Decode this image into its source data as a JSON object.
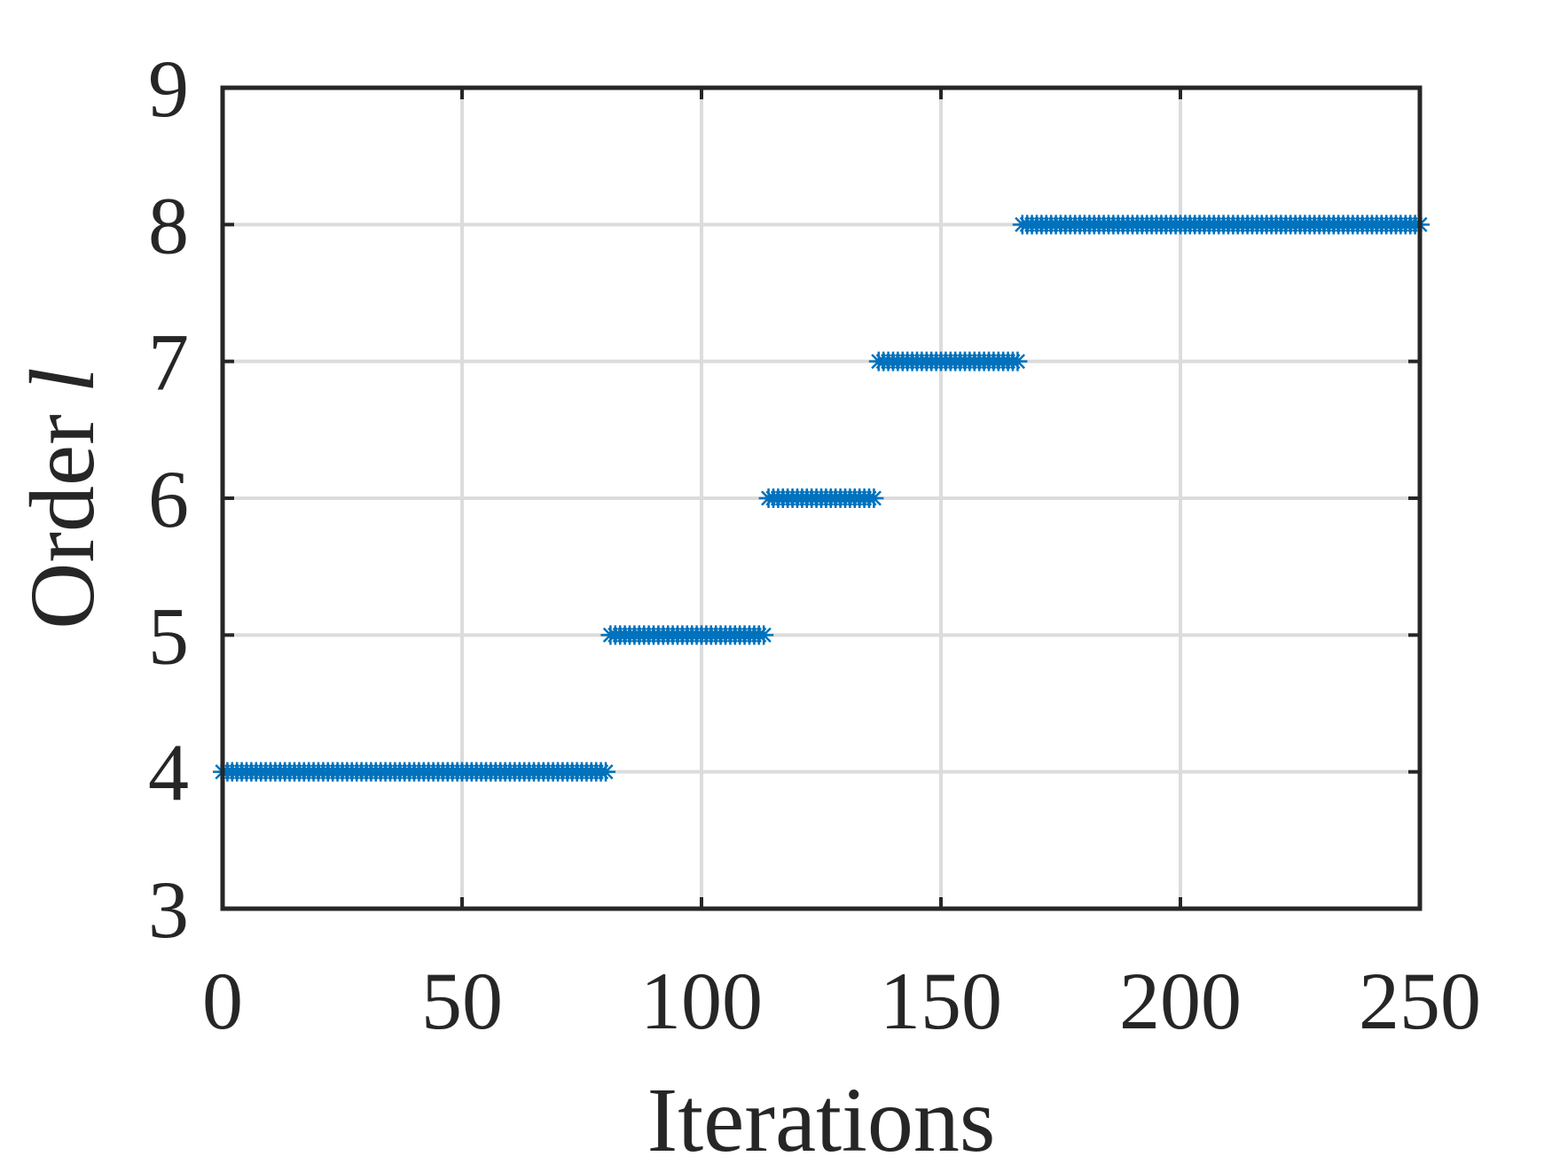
{
  "chart_data": {
    "type": "scatter",
    "xlabel": "Iterations",
    "ylabel": "Order",
    "ylabel_symbol": "l",
    "marker": "asterisk",
    "color": "#0072bd",
    "grid": true,
    "xlim": [
      0,
      250
    ],
    "xticks": [
      0,
      50,
      100,
      150,
      200,
      250
    ],
    "ylim": [
      3,
      9
    ],
    "yticks": [
      3,
      4,
      5,
      6,
      7,
      8,
      9
    ],
    "x": [
      0,
      1,
      2,
      3,
      4,
      5,
      6,
      7,
      8,
      9,
      10,
      11,
      12,
      13,
      14,
      15,
      16,
      17,
      18,
      19,
      20,
      21,
      22,
      23,
      24,
      25,
      26,
      27,
      28,
      29,
      30,
      31,
      32,
      33,
      34,
      35,
      36,
      37,
      38,
      39,
      40,
      41,
      42,
      43,
      44,
      45,
      46,
      47,
      48,
      49,
      50,
      51,
      52,
      53,
      54,
      55,
      56,
      57,
      58,
      59,
      60,
      61,
      62,
      63,
      64,
      65,
      66,
      67,
      68,
      69,
      70,
      71,
      72,
      73,
      74,
      75,
      76,
      77,
      78,
      79,
      80,
      81,
      82,
      83,
      84,
      85,
      86,
      87,
      88,
      89,
      90,
      91,
      92,
      93,
      94,
      95,
      96,
      97,
      98,
      99,
      100,
      101,
      102,
      103,
      104,
      105,
      106,
      107,
      108,
      109,
      110,
      111,
      112,
      113,
      114,
      115,
      116,
      117,
      118,
      119,
      120,
      121,
      122,
      123,
      124,
      125,
      126,
      127,
      128,
      129,
      130,
      131,
      132,
      133,
      134,
      135,
      136,
      137,
      138,
      139,
      140,
      141,
      142,
      143,
      144,
      145,
      146,
      147,
      148,
      149,
      150,
      151,
      152,
      153,
      154,
      155,
      156,
      157,
      158,
      159,
      160,
      161,
      162,
      163,
      164,
      165,
      166,
      167,
      168,
      169,
      170,
      171,
      172,
      173,
      174,
      175,
      176,
      177,
      178,
      179,
      180,
      181,
      182,
      183,
      184,
      185,
      186,
      187,
      188,
      189,
      190,
      191,
      192,
      193,
      194,
      195,
      196,
      197,
      198,
      199,
      200,
      201,
      202,
      203,
      204,
      205,
      206,
      207,
      208,
      209,
      210,
      211,
      212,
      213,
      214,
      215,
      216,
      217,
      218,
      219,
      220,
      221,
      222,
      223,
      224,
      225,
      226,
      227,
      228,
      229,
      230,
      231,
      232,
      233,
      234,
      235,
      236,
      237,
      238,
      239,
      240,
      241,
      242,
      243,
      244,
      245,
      246,
      247,
      248,
      249,
      250
    ],
    "values": [
      4,
      4,
      4,
      4,
      4,
      4,
      4,
      4,
      4,
      4,
      4,
      4,
      4,
      4,
      4,
      4,
      4,
      4,
      4,
      4,
      4,
      4,
      4,
      4,
      4,
      4,
      4,
      4,
      4,
      4,
      4,
      4,
      4,
      4,
      4,
      4,
      4,
      4,
      4,
      4,
      4,
      4,
      4,
      4,
      4,
      4,
      4,
      4,
      4,
      4,
      4,
      4,
      4,
      4,
      4,
      4,
      4,
      4,
      4,
      4,
      4,
      4,
      4,
      4,
      4,
      4,
      4,
      4,
      4,
      4,
      4,
      4,
      4,
      4,
      4,
      4,
      4,
      4,
      4,
      4,
      4,
      5,
      5,
      5,
      5,
      5,
      5,
      5,
      5,
      5,
      5,
      5,
      5,
      5,
      5,
      5,
      5,
      5,
      5,
      5,
      5,
      5,
      5,
      5,
      5,
      5,
      5,
      5,
      5,
      5,
      5,
      5,
      5,
      5,
      6,
      6,
      6,
      6,
      6,
      6,
      6,
      6,
      6,
      6,
      6,
      6,
      6,
      6,
      6,
      6,
      6,
      6,
      6,
      6,
      6,
      6,
      6,
      7,
      7,
      7,
      7,
      7,
      7,
      7,
      7,
      7,
      7,
      7,
      7,
      7,
      7,
      7,
      7,
      7,
      7,
      7,
      7,
      7,
      7,
      7,
      7,
      7,
      7,
      7,
      7,
      7,
      7,
      8,
      8,
      8,
      8,
      8,
      8,
      8,
      8,
      8,
      8,
      8,
      8,
      8,
      8,
      8,
      8,
      8,
      8,
      8,
      8,
      8,
      8,
      8,
      8,
      8,
      8,
      8,
      8,
      8,
      8,
      8,
      8,
      8,
      8,
      8,
      8,
      8,
      8,
      8,
      8,
      8,
      8,
      8,
      8,
      8,
      8,
      8,
      8,
      8,
      8,
      8,
      8,
      8,
      8,
      8,
      8,
      8,
      8,
      8,
      8,
      8,
      8,
      8,
      8,
      8,
      8,
      8,
      8,
      8,
      8,
      8,
      8,
      8,
      8,
      8,
      8,
      8,
      8,
      8,
      8,
      8,
      8,
      8,
      8
    ]
  }
}
